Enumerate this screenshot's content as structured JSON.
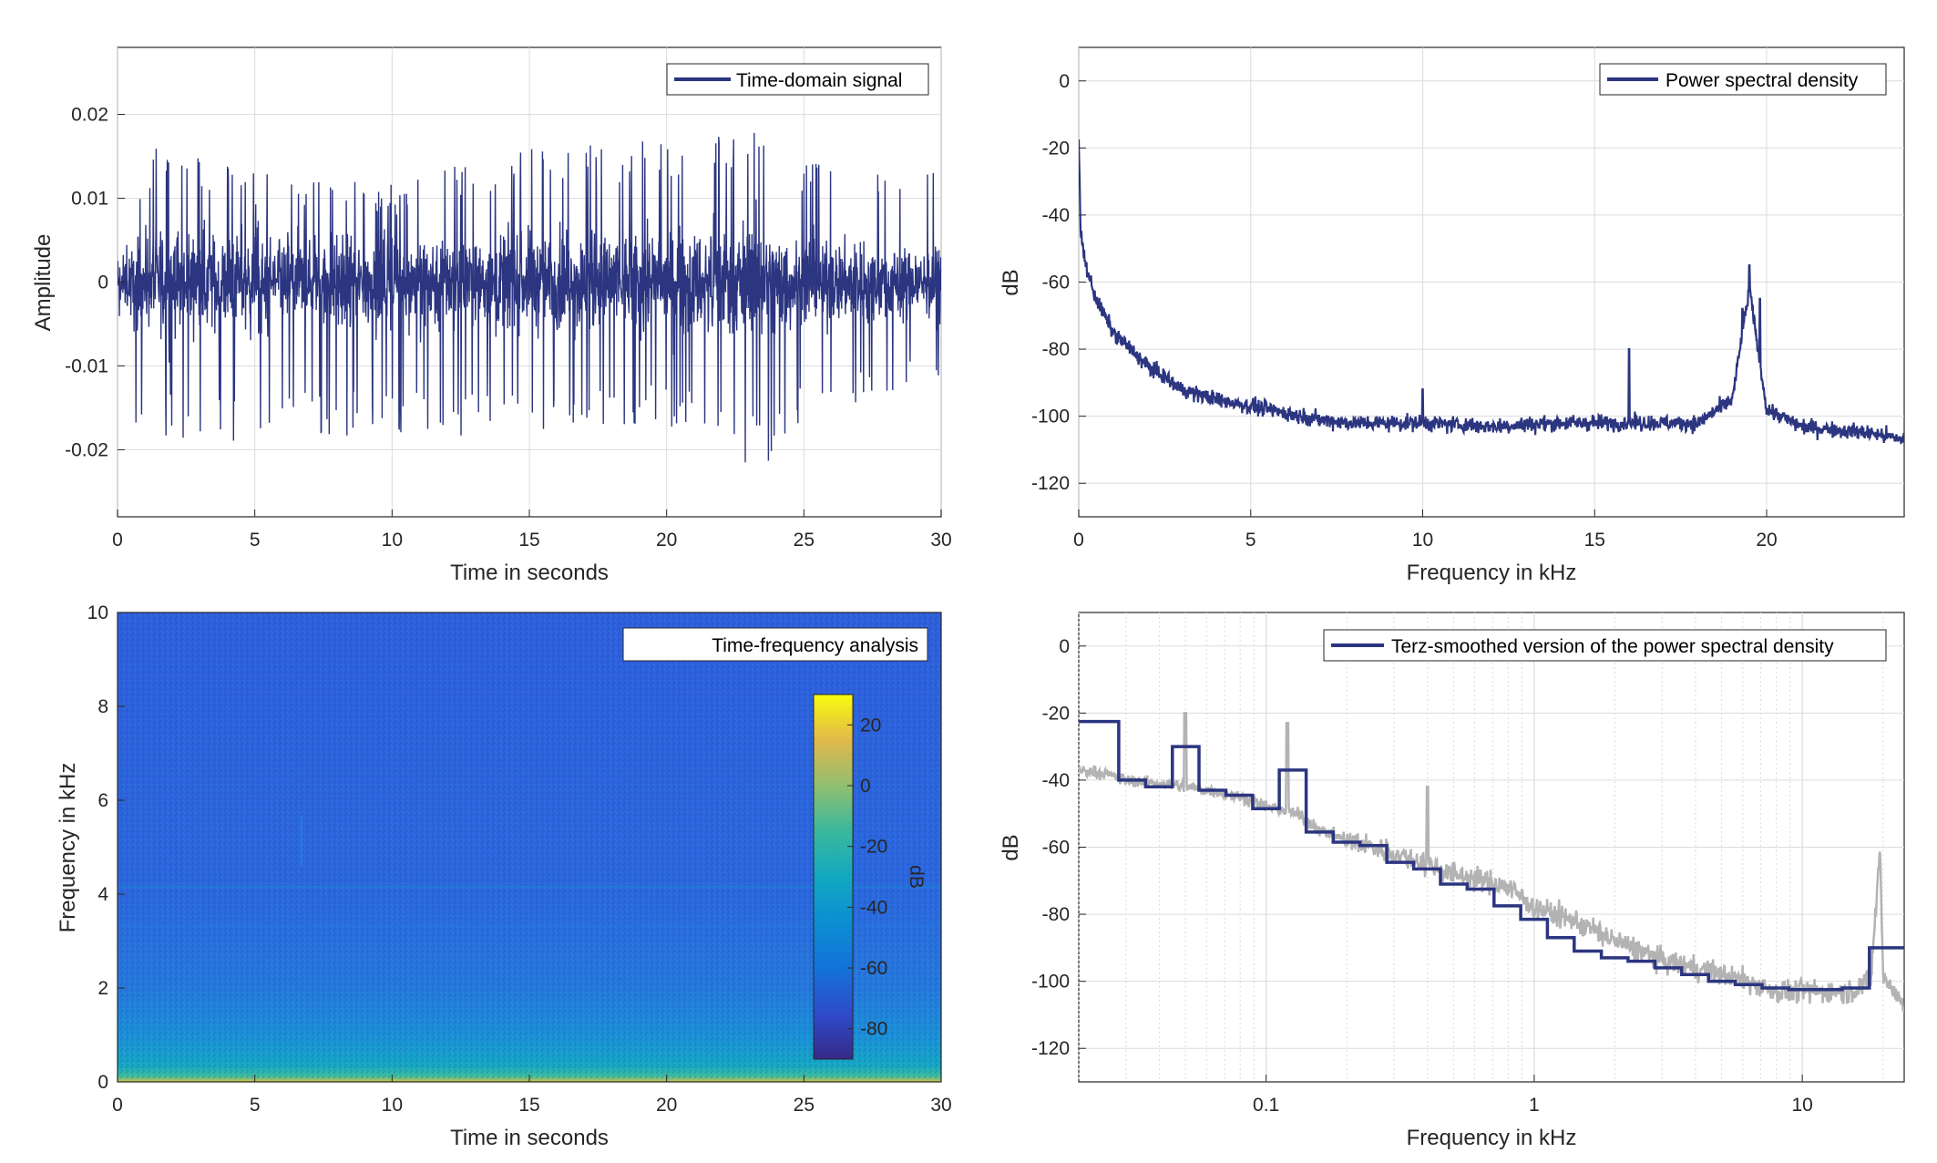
{
  "colors": {
    "series": "#2b3580",
    "raw_psd": "#b3b3b3",
    "grid": "#dcdcdc",
    "axis": "#262626"
  },
  "chart_data": [
    {
      "id": "time",
      "type": "line",
      "xlabel": "Time in seconds",
      "ylabel": "Amplitude",
      "xlim": [
        0,
        30
      ],
      "ylim": [
        -0.028,
        0.028
      ],
      "xticks": [
        0,
        5,
        10,
        15,
        20,
        25,
        30
      ],
      "xtick_labels": [
        "0",
        "5",
        "10",
        "15",
        "20",
        "25",
        "30"
      ],
      "yticks": [
        -0.02,
        -0.01,
        0,
        0.01,
        0.02
      ],
      "ytick_labels": [
        "-0.02",
        "-0.01",
        "0",
        "0.01",
        "0.02"
      ],
      "grid": true,
      "legend": "top-right",
      "series": [
        {
          "name": "Time-domain signal",
          "envelope_upper": [
            [
              0,
              0.0025
            ],
            [
              1.5,
              0.017
            ],
            [
              5,
              0.013
            ],
            [
              10,
              0.012
            ],
            [
              15,
              0.016
            ],
            [
              20,
              0.017
            ],
            [
              22.8,
              0.019
            ],
            [
              25,
              0.015
            ],
            [
              30,
              0.013
            ]
          ],
          "envelope_lower": [
            [
              0,
              -0.015
            ],
            [
              1.5,
              -0.019
            ],
            [
              5.5,
              -0.019
            ],
            [
              10,
              -0.018
            ],
            [
              15.5,
              -0.019
            ],
            [
              20,
              -0.017
            ],
            [
              23.4,
              -0.023
            ],
            [
              25,
              -0.016
            ],
            [
              30,
              -0.012
            ]
          ]
        }
      ]
    },
    {
      "id": "psd",
      "type": "line",
      "xlabel": "Frequency in kHz",
      "ylabel": "dB",
      "xlim": [
        0,
        24
      ],
      "ylim": [
        -130,
        10
      ],
      "xticks": [
        0,
        5,
        10,
        15,
        20
      ],
      "xtick_labels": [
        "0",
        "5",
        "10",
        "15",
        "20"
      ],
      "yticks": [
        -120,
        -100,
        -80,
        -60,
        -40,
        -20,
        0
      ],
      "ytick_labels": [
        "-120",
        "-100",
        "-80",
        "-60",
        "-40",
        "-20",
        "0"
      ],
      "grid": true,
      "legend": "top-right",
      "series": [
        {
          "name": "Power spectral density",
          "x": [
            0,
            0.05,
            0.2,
            0.5,
            1,
            2,
            3,
            4,
            5,
            6,
            7,
            8,
            10,
            12,
            14,
            16,
            18,
            19,
            19.5,
            20,
            21,
            22,
            23,
            24
          ],
          "y": [
            -15,
            -45,
            -55,
            -65,
            -75,
            -85,
            -92,
            -95,
            -97,
            -99,
            -101,
            -102,
            -102,
            -103,
            -102,
            -102,
            -102,
            -95,
            -62,
            -98,
            -103,
            -104,
            -105,
            -107
          ],
          "peaks": [
            [
              16,
              -80
            ],
            [
              19.3,
              -68
            ],
            [
              19.5,
              -55
            ],
            [
              19.8,
              -65
            ],
            [
              10,
              -92
            ]
          ]
        }
      ]
    },
    {
      "id": "spectrogram",
      "type": "heatmap",
      "xlabel": "Time in seconds",
      "ylabel": "Frequency in kHz",
      "xlim": [
        0,
        30
      ],
      "ylim": [
        0,
        10
      ],
      "xticks": [
        0,
        5,
        10,
        15,
        20,
        25,
        30
      ],
      "xtick_labels": [
        "0",
        "5",
        "10",
        "15",
        "20",
        "25",
        "30"
      ],
      "yticks": [
        0,
        2,
        4,
        6,
        8,
        10
      ],
      "ytick_labels": [
        "0",
        "2",
        "4",
        "6",
        "8",
        "10"
      ],
      "legend": "top-right",
      "legend_text": "Time-frequency analysis",
      "colorbar": {
        "label": "dB",
        "range": [
          -90,
          30
        ],
        "ticks": [
          -80,
          -60,
          -40,
          -20,
          0,
          20
        ],
        "tick_labels": [
          "-80",
          "-60",
          "-40",
          "-20",
          "0",
          "20"
        ]
      },
      "level_profile_db": [
        [
          0,
          10
        ],
        [
          0.15,
          -25
        ],
        [
          0.5,
          -45
        ],
        [
          1.5,
          -55
        ],
        [
          3,
          -62
        ],
        [
          5,
          -65
        ],
        [
          10,
          -70
        ]
      ]
    },
    {
      "id": "terz",
      "type": "line",
      "xlabel": "Frequency in kHz",
      "ylabel": "dB",
      "xscale": "log",
      "xlim": [
        0.02,
        24
      ],
      "ylim": [
        -130,
        10
      ],
      "xticks": [
        0.1,
        1,
        10
      ],
      "xtick_labels": [
        "0.1",
        "1",
        "10"
      ],
      "yticks": [
        -120,
        -100,
        -80,
        -60,
        -40,
        -20,
        0
      ],
      "ytick_labels": [
        "-120",
        "-100",
        "-80",
        "-60",
        "-40",
        "-20",
        "0"
      ],
      "grid": true,
      "legend": "top-right",
      "series": [
        {
          "name": "",
          "x": [
            0.02,
            0.025,
            0.03,
            0.04,
            0.05,
            0.06,
            0.08,
            0.1,
            0.13,
            0.16,
            0.2,
            0.3,
            0.5,
            0.8,
            1,
            2,
            3,
            5,
            8,
            10,
            15,
            18,
            19.5,
            20,
            24
          ],
          "y": [
            -37,
            -38,
            -40,
            -41,
            -42,
            -43,
            -45,
            -48,
            -50,
            -55,
            -58,
            -62,
            -68,
            -72,
            -78,
            -88,
            -94,
            -98,
            -103,
            -103,
            -103,
            -100,
            -60,
            -98,
            -108
          ],
          "peaks": [
            [
              0.05,
              -20
            ],
            [
              0.12,
              -23
            ],
            [
              0.4,
              -42
            ]
          ]
        },
        {
          "name": "Terz-smoothed version of the power spectral density",
          "step_edges_khz": [
            0.02,
            0.0282,
            0.0355,
            0.0447,
            0.0562,
            0.0708,
            0.0891,
            0.112,
            0.141,
            0.178,
            0.224,
            0.282,
            0.355,
            0.447,
            0.562,
            0.708,
            0.891,
            1.12,
            1.41,
            1.78,
            2.24,
            2.82,
            3.55,
            4.47,
            5.62,
            7.08,
            8.91,
            11.2,
            14.1,
            17.8,
            24
          ],
          "step_levels_db": [
            -22.5,
            -40,
            -42,
            -30,
            -43,
            -44.5,
            -48.5,
            -37,
            -55.5,
            -58.5,
            -59.5,
            -64.5,
            -66.5,
            -71,
            -72.5,
            -77.5,
            -81.5,
            -87,
            -91,
            -93,
            -94,
            -96,
            -98,
            -100,
            -101,
            -102,
            -102.5,
            -102.5,
            -102,
            -90
          ]
        }
      ]
    }
  ]
}
